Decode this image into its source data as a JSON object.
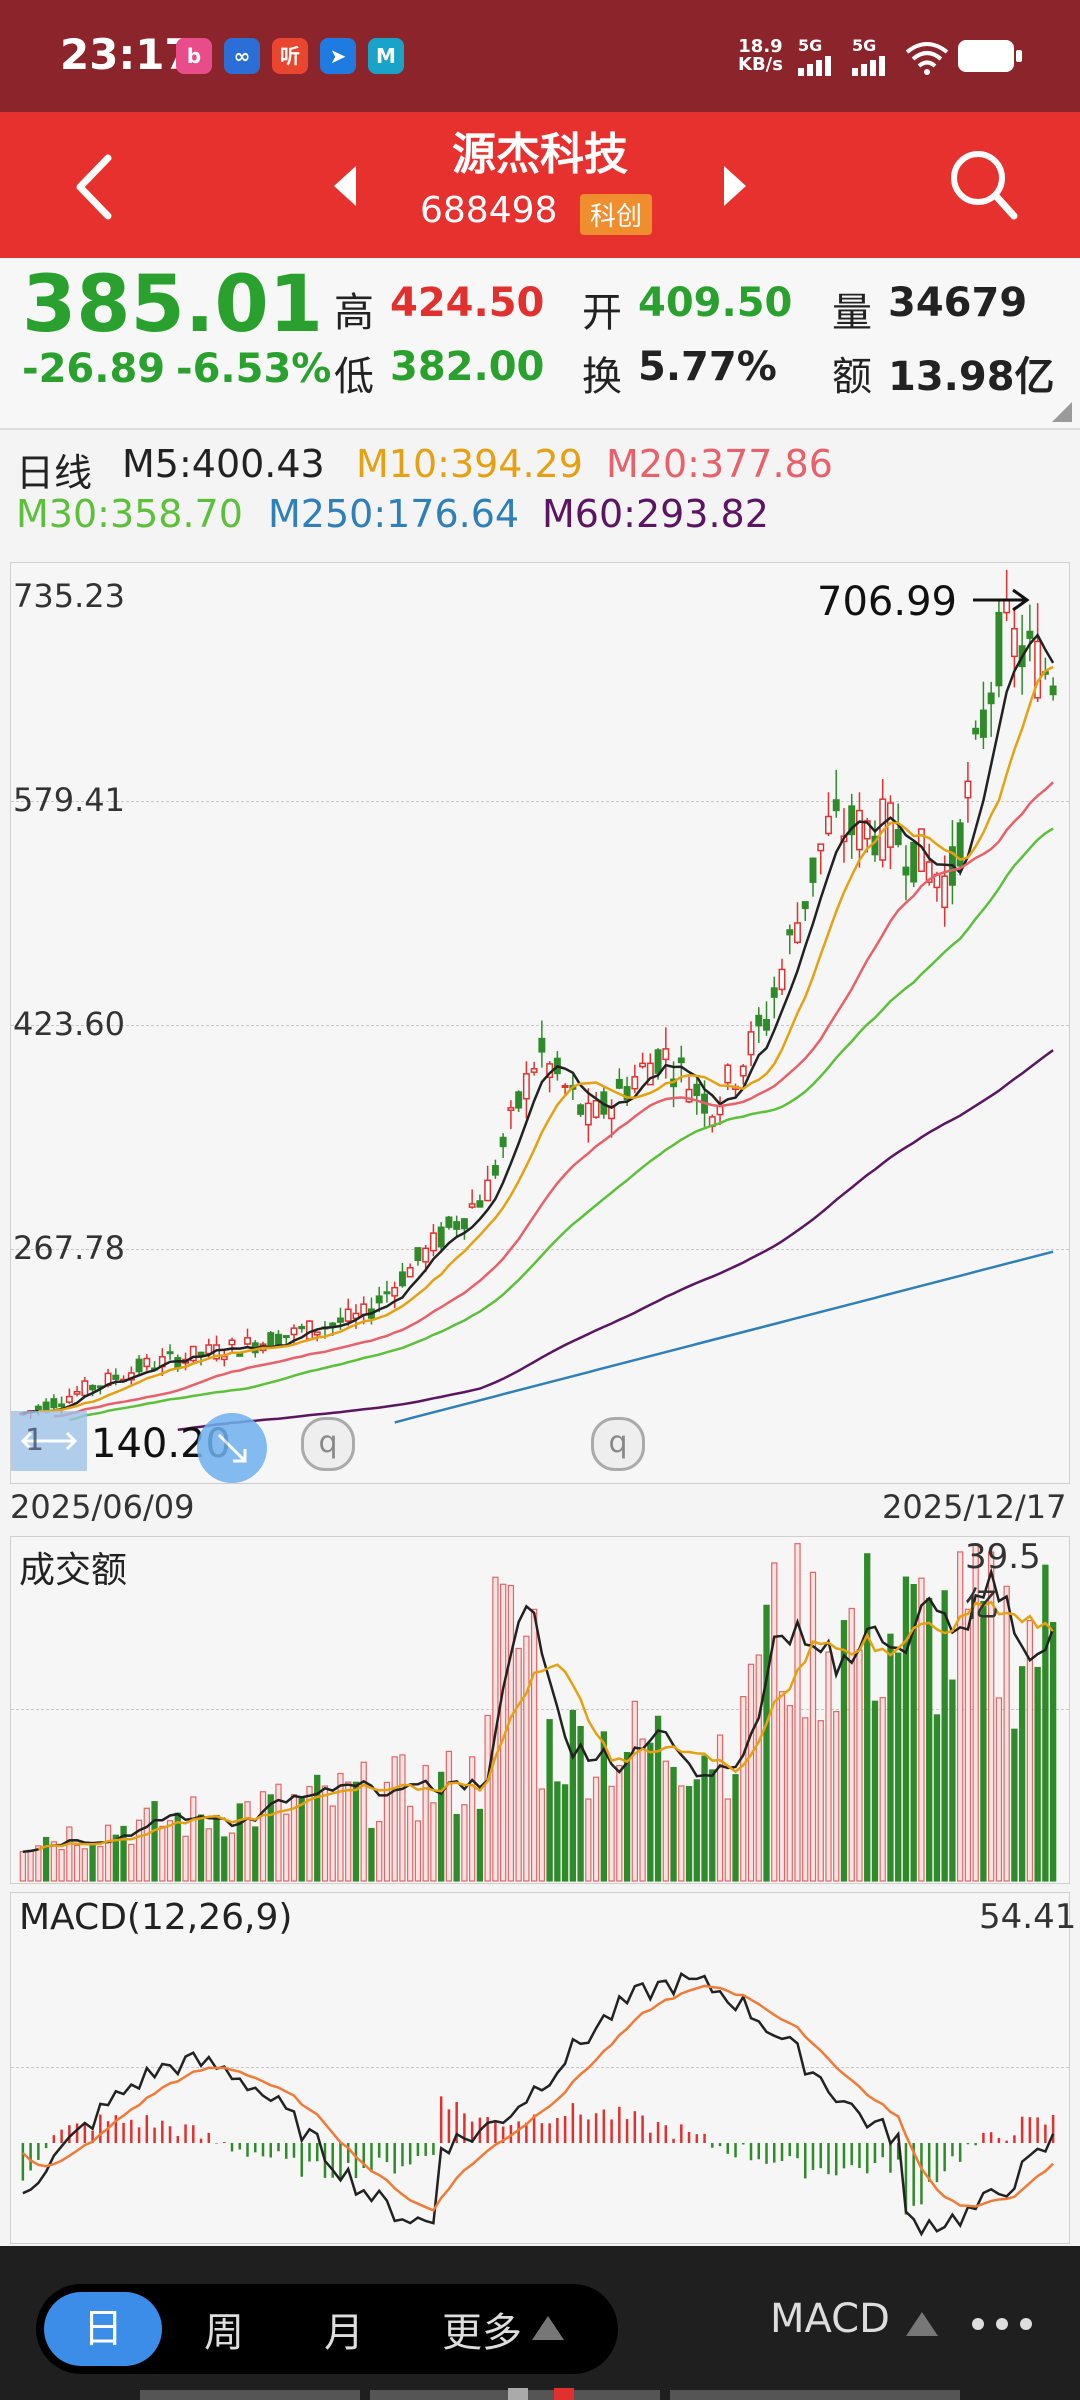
{
  "status_bar": {
    "time": "23:17",
    "net_speed": "18.9",
    "net_unit": "KB/s",
    "sig1": "5G",
    "sig2": "5G",
    "apps": [
      {
        "name": "bilibili-icon",
        "color": "#e84c8a",
        "glyph": "b"
      },
      {
        "name": "browser-icon",
        "color": "#2b6fd6",
        "glyph": "∞"
      },
      {
        "name": "ting-icon",
        "color": "#e9452f",
        "glyph": "听"
      },
      {
        "name": "location-icon",
        "color": "#1f7be0",
        "glyph": "➤"
      },
      {
        "name": "metro-icon",
        "color": "#1aa3c8",
        "glyph": "M"
      }
    ]
  },
  "header": {
    "title": "源杰科技",
    "code": "688498",
    "badge": "科创"
  },
  "quote": {
    "price": "385.01",
    "change": "-26.89",
    "change_pct": "-6.53%",
    "high_label": "高",
    "high": "424.50",
    "low_label": "低",
    "low": "382.00",
    "open_label": "开",
    "open": "409.50",
    "turnover_label": "换",
    "turnover": "5.77%",
    "volume_label": "量",
    "volume": "34679",
    "amount_label": "额",
    "amount": "13.98亿"
  },
  "ma_legend": {
    "period": "日线",
    "m5": "M5:400.43",
    "m10": "M10:394.29",
    "m20": "M20:377.86",
    "m30": "M30:358.70",
    "m250": "M250:176.64",
    "m60": "M60:293.82",
    "colors": {
      "m5": "#222222",
      "m10": "#e6a112",
      "m20": "#e8606a",
      "m30": "#5cc03a",
      "m250": "#2f7fb8",
      "m60": "#5a1660"
    }
  },
  "price_chart": {
    "ylabels": [
      "735.23",
      "579.41",
      "423.60",
      "267.78"
    ],
    "high_marker": "706.99",
    "low_marker": "140.20",
    "low_marker_prefix": "1",
    "date_start": "2025/06/09",
    "date_end": "2025/12/17"
  },
  "volume_chart": {
    "title": "成交额",
    "max_label": "39.5亿"
  },
  "macd_chart": {
    "title": "MACD(12,26,9)",
    "max_label": "54.41"
  },
  "bottom_bar": {
    "tabs": [
      "日",
      "周",
      "月",
      "更多"
    ],
    "indicator": "MACD"
  }
}
